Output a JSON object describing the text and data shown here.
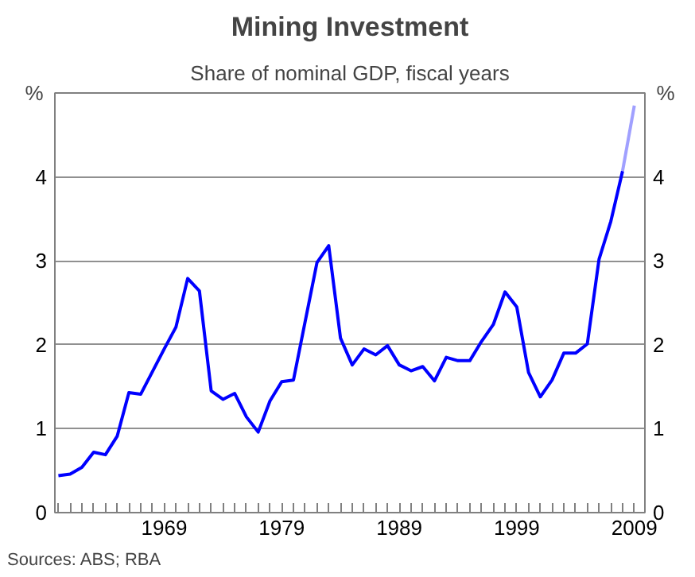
{
  "chart_data": {
    "type": "line",
    "title": "Mining Investment",
    "subtitle": "Share of nominal GDP, fiscal years",
    "ylabel": "%",
    "y2label": "%",
    "series": [
      {
        "color": "#0000ff",
        "x": [
          1960,
          1961,
          1962,
          1963,
          1964,
          1965,
          1966,
          1967,
          1968,
          1969,
          1970,
          1971,
          1972,
          1973,
          1974,
          1975,
          1976,
          1977,
          1978,
          1979,
          1980,
          1981,
          1982,
          1983,
          1984,
          1985,
          1986,
          1987,
          1988,
          1989,
          1990,
          1991,
          1992,
          1993,
          1994,
          1995,
          1996,
          1997,
          1998,
          1999,
          2000,
          2001,
          2002,
          2003,
          2004,
          2005,
          2006,
          2007,
          2008
        ],
        "values": [
          0.44,
          0.46,
          0.54,
          0.72,
          0.69,
          0.91,
          1.43,
          1.41,
          1.68,
          1.95,
          2.21,
          2.79,
          2.64,
          1.45,
          1.35,
          1.42,
          1.14,
          0.96,
          1.33,
          1.56,
          1.58,
          2.28,
          2.98,
          3.18,
          2.08,
          1.76,
          1.95,
          1.88,
          1.99,
          1.76,
          1.69,
          1.74,
          1.57,
          1.85,
          1.81,
          1.81,
          2.04,
          2.24,
          2.63,
          2.45,
          1.67,
          1.38,
          1.58,
          1.9,
          1.9,
          2.01,
          3.02,
          3.47,
          4.07
        ]
      },
      {
        "color": "#a0a0ff",
        "x": [
          2008,
          2009
        ],
        "values": [
          4.07,
          4.85
        ]
      }
    ],
    "xlim": [
      1959.7,
      2009.9
    ],
    "xticks": [
      {
        "value": 1960,
        "label": null
      },
      {
        "value": 1961,
        "label": null
      },
      {
        "value": 1962,
        "label": null
      },
      {
        "value": 1963,
        "label": null
      },
      {
        "value": 1964,
        "label": null
      },
      {
        "value": 1965,
        "label": null
      },
      {
        "value": 1966,
        "label": null
      },
      {
        "value": 1967,
        "label": null
      },
      {
        "value": 1968,
        "label": null
      },
      1969,
      {
        "value": 1970,
        "label": null
      },
      {
        "value": 1971,
        "label": null
      },
      {
        "value": 1972,
        "label": null
      },
      {
        "value": 1973,
        "label": null
      },
      {
        "value": 1974,
        "label": null
      },
      {
        "value": 1975,
        "label": null
      },
      {
        "value": 1976,
        "label": null
      },
      {
        "value": 1977,
        "label": null
      },
      {
        "value": 1978,
        "label": null
      },
      1979,
      {
        "value": 1980,
        "label": null
      },
      {
        "value": 1981,
        "label": null
      },
      {
        "value": 1982,
        "label": null
      },
      {
        "value": 1983,
        "label": null
      },
      {
        "value": 1984,
        "label": null
      },
      {
        "value": 1985,
        "label": null
      },
      {
        "value": 1986,
        "label": null
      },
      {
        "value": 1987,
        "label": null
      },
      {
        "value": 1988,
        "label": null
      },
      1989,
      {
        "value": 1990,
        "label": null
      },
      {
        "value": 1991,
        "label": null
      },
      {
        "value": 1992,
        "label": null
      },
      {
        "value": 1993,
        "label": null
      },
      {
        "value": 1994,
        "label": null
      },
      {
        "value": 1995,
        "label": null
      },
      {
        "value": 1996,
        "label": null
      },
      {
        "value": 1997,
        "label": null
      },
      {
        "value": 1998,
        "label": null
      },
      1999,
      {
        "value": 2000,
        "label": null
      },
      {
        "value": 2001,
        "label": null
      },
      {
        "value": 2002,
        "label": null
      },
      {
        "value": 2003,
        "label": null
      },
      {
        "value": 2004,
        "label": null
      },
      {
        "value": 2005,
        "label": null
      },
      {
        "value": 2006,
        "label": null
      },
      {
        "value": 2007,
        "label": null
      },
      {
        "value": 2008,
        "label": null
      },
      2009
    ],
    "ylim": [
      0,
      5
    ],
    "yticks": [
      0,
      1,
      2,
      3,
      4
    ],
    "y2lim": [
      0,
      5
    ],
    "y2ticks": [
      0,
      1,
      2,
      3,
      4
    ],
    "grid": "y",
    "line_style": "solid",
    "annotations": [
      "Sources: ABS; RBA"
    ]
  }
}
